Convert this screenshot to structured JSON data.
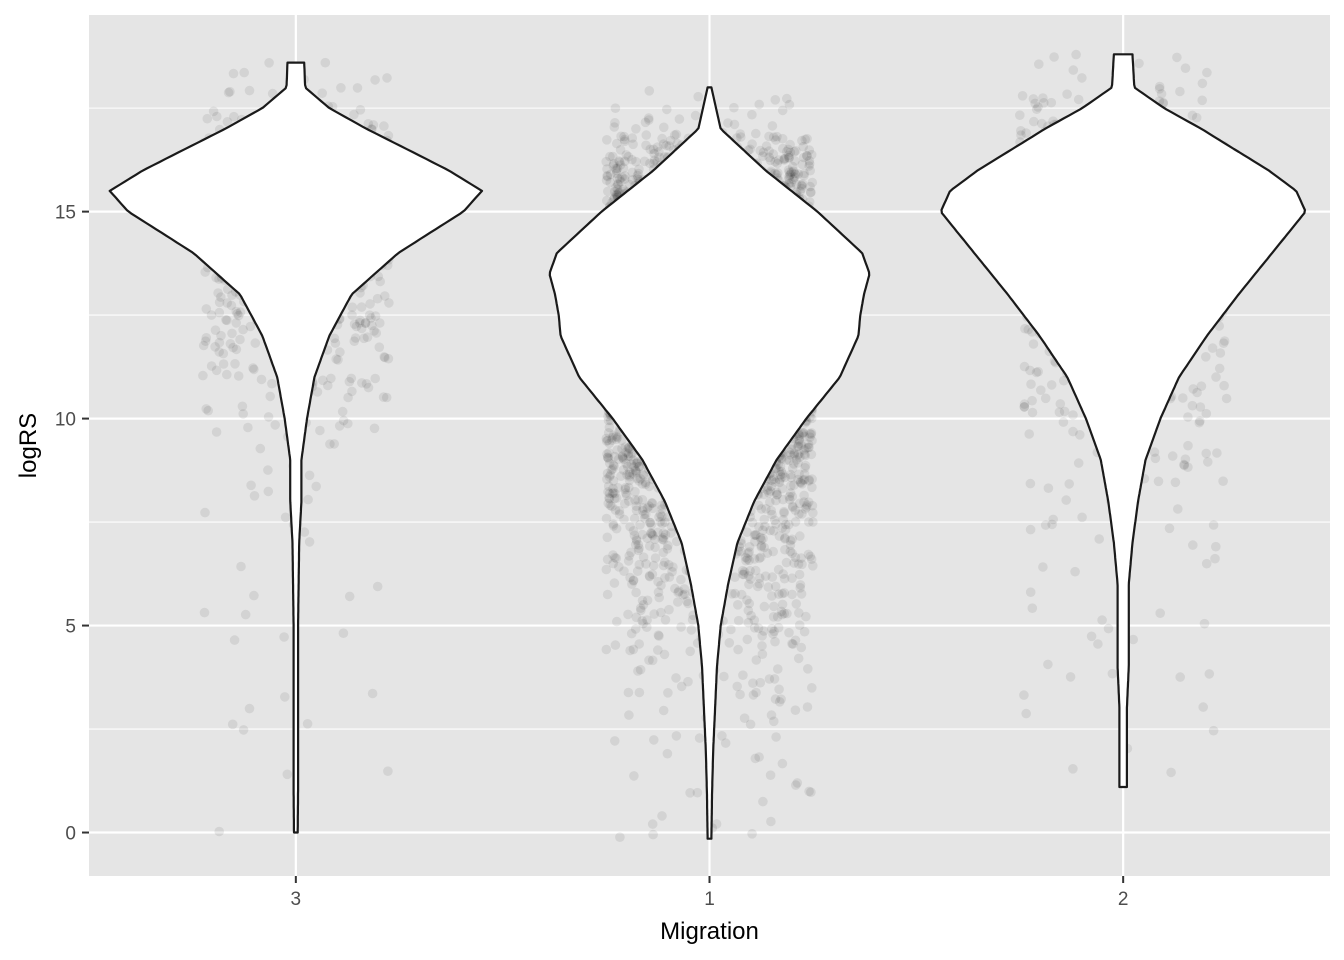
{
  "chart_data": {
    "type": "violin",
    "title": "",
    "xlabel": "Migration",
    "ylabel": "logRS",
    "categories": [
      "3",
      "1",
      "2"
    ],
    "ylim": [
      -1.05,
      19.75
    ],
    "yticks": [
      0,
      5,
      10,
      15
    ],
    "grid": true,
    "legend": "none",
    "colors": {
      "panel_background": "#e5e5e5",
      "grid": "#ffffff",
      "violin_fill": "#ffffff",
      "violin_outline": "#1a1a1a",
      "points": "#000000",
      "point_alpha": 0.08
    },
    "series": [
      {
        "category": "3",
        "y_range": [
          0.0,
          18.6
        ],
        "point_count": 1000,
        "jitter_width": 0.45,
        "density_profile": [
          [
            0.0,
            0.01
          ],
          [
            1.0,
            0.012
          ],
          [
            2.0,
            0.012
          ],
          [
            3.0,
            0.012
          ],
          [
            4.0,
            0.012
          ],
          [
            5.0,
            0.012
          ],
          [
            6.0,
            0.015
          ],
          [
            7.0,
            0.018
          ],
          [
            8.0,
            0.03
          ],
          [
            9.0,
            0.03
          ],
          [
            10.0,
            0.06
          ],
          [
            11.0,
            0.1
          ],
          [
            12.0,
            0.18
          ],
          [
            13.0,
            0.3
          ],
          [
            14.0,
            0.55
          ],
          [
            15.0,
            0.9
          ],
          [
            15.5,
            1.0
          ],
          [
            16.0,
            0.82
          ],
          [
            17.0,
            0.38
          ],
          [
            17.5,
            0.18
          ],
          [
            18.0,
            0.05
          ],
          [
            18.6,
            0.045
          ]
        ]
      },
      {
        "category": "1",
        "y_range": [
          -0.15,
          18.0
        ],
        "point_count": 5000,
        "jitter_width": 0.5,
        "density_profile": [
          [
            -0.15,
            0.01
          ],
          [
            1.0,
            0.014
          ],
          [
            2.0,
            0.02
          ],
          [
            3.0,
            0.03
          ],
          [
            4.0,
            0.04
          ],
          [
            5.0,
            0.06
          ],
          [
            6.0,
            0.1
          ],
          [
            7.0,
            0.15
          ],
          [
            8.0,
            0.24
          ],
          [
            9.0,
            0.36
          ],
          [
            10.0,
            0.52
          ],
          [
            11.0,
            0.7
          ],
          [
            12.0,
            0.8
          ],
          [
            12.5,
            0.81
          ],
          [
            13.0,
            0.83
          ],
          [
            13.5,
            0.86
          ],
          [
            14.0,
            0.82
          ],
          [
            15.0,
            0.58
          ],
          [
            16.0,
            0.3
          ],
          [
            17.0,
            0.06
          ],
          [
            18.0,
            0.01
          ]
        ]
      },
      {
        "category": "2",
        "y_range": [
          1.1,
          18.8
        ],
        "point_count": 900,
        "jitter_width": 0.5,
        "density_profile": [
          [
            1.1,
            0.02
          ],
          [
            2.0,
            0.02
          ],
          [
            3.0,
            0.02
          ],
          [
            4.0,
            0.03
          ],
          [
            5.0,
            0.03
          ],
          [
            6.0,
            0.03
          ],
          [
            7.0,
            0.05
          ],
          [
            8.0,
            0.08
          ],
          [
            9.0,
            0.12
          ],
          [
            10.0,
            0.2
          ],
          [
            11.0,
            0.3
          ],
          [
            12.0,
            0.45
          ],
          [
            13.0,
            0.62
          ],
          [
            14.0,
            0.8
          ],
          [
            15.0,
            0.98
          ],
          [
            15.5,
            0.93
          ],
          [
            16.0,
            0.78
          ],
          [
            17.0,
            0.42
          ],
          [
            17.5,
            0.22
          ],
          [
            18.0,
            0.06
          ],
          [
            18.8,
            0.05
          ]
        ]
      }
    ]
  }
}
